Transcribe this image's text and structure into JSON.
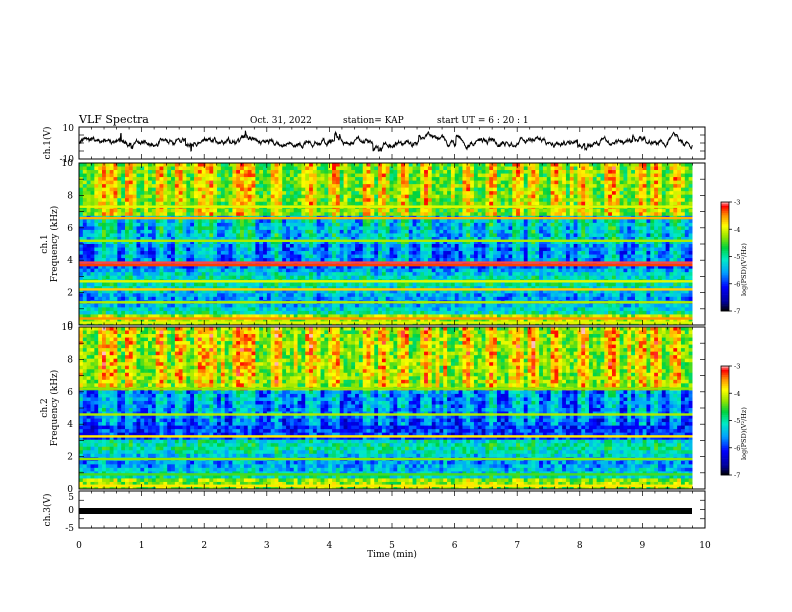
{
  "header": {
    "title": "VLF Spectra",
    "date": "Oct. 31, 2022",
    "station": "station= KAP",
    "start": "start UT =  6 : 20 : 1"
  },
  "chart_data": [
    {
      "id": "ch1-waveform",
      "type": "line",
      "ylabel": "ch.1(V)",
      "ylim": [
        -10,
        10
      ],
      "yticklabels": [
        "10",
        "-10"
      ],
      "xlim": [
        0,
        10
      ],
      "series": [
        {
          "color": "#000000",
          "mean": 0.5,
          "range": [
            -5,
            8
          ]
        }
      ]
    },
    {
      "id": "ch1-spectrogram",
      "type": "heatmap",
      "ylabel": "ch.1",
      "ylabel2": "Frequency (kHz)",
      "ylim": [
        0,
        10
      ],
      "yticklabels": [
        "0",
        "2",
        "4",
        "6",
        "8",
        "10"
      ],
      "xlim": [
        0,
        10
      ],
      "horizontal_lines_khz": [
        {
          "f": 3.85,
          "level": -3.1
        },
        {
          "f": 3.7,
          "level": -3.3
        },
        {
          "f": 2.2,
          "level": -3.7
        },
        {
          "f": 2.7,
          "level": -4.0
        },
        {
          "f": 6.6,
          "level": -3.6
        },
        {
          "f": 5.2,
          "level": -4.2
        },
        {
          "f": 7.3,
          "level": -4.0
        },
        {
          "f": 1.4,
          "level": -4.2
        },
        {
          "f": 0.4,
          "level": -3.5
        },
        {
          "f": 0.15,
          "level": -4.0
        }
      ],
      "colorbar": {
        "label": "log(PSD)(V²/Hz)",
        "range": [
          -7,
          -3
        ],
        "ticks": [
          "-3",
          "-4",
          "-5",
          "-6",
          "-7"
        ]
      }
    },
    {
      "id": "ch2-spectrogram",
      "type": "heatmap",
      "ylabel": "ch.2",
      "ylabel2": "Frequency (kHz)",
      "ylim": [
        0,
        10
      ],
      "yticklabels": [
        "0",
        "2",
        "4",
        "6",
        "8",
        "10"
      ],
      "xlim": [
        0,
        10
      ],
      "horizontal_lines_khz": [
        {
          "f": 3.25,
          "level": -3.8
        },
        {
          "f": 4.6,
          "level": -4.2
        },
        {
          "f": 6.2,
          "level": -4.3
        },
        {
          "f": 1.85,
          "level": -4.3
        },
        {
          "f": 0.9,
          "level": -4.5
        },
        {
          "f": 0.2,
          "level": -3.8
        }
      ],
      "colorbar": {
        "label": "log(PSD)(V²/Hz)",
        "range": [
          -7,
          -3
        ],
        "ticks": [
          "-3",
          "-4",
          "-5",
          "-6",
          "-7"
        ]
      }
    },
    {
      "id": "ch3-waveform",
      "type": "line",
      "ylabel": "ch.3(V)",
      "ylim": [
        -5,
        5
      ],
      "yticklabels": [
        "5",
        "0",
        "-5"
      ],
      "xlim": [
        0,
        10
      ],
      "xlabel": "Time (min)",
      "xticklabels": [
        "0",
        "1",
        "2",
        "3",
        "4",
        "5",
        "6",
        "7",
        "8",
        "9",
        "10"
      ],
      "series": [
        {
          "color": "#000000",
          "mean": -1.8,
          "range": [
            -2.1,
            -1.5
          ]
        }
      ]
    }
  ],
  "colors": {
    "axis": "#000000",
    "background": "#ffffff"
  }
}
